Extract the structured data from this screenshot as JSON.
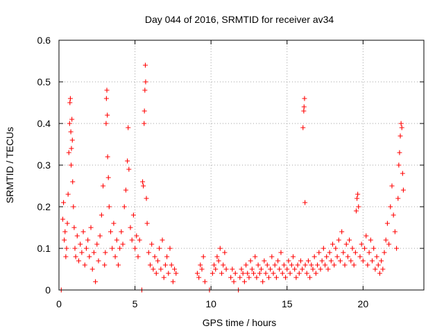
{
  "chart_data": {
    "type": "scatter",
    "title": "Day 044 of 2016, SRMTID for receiver av34",
    "xlabel": "GPS time / hours",
    "ylabel": "SRMTID / TECUs",
    "xlim": [
      0,
      24
    ],
    "ylim": [
      0,
      0.6
    ],
    "x_ticks": [
      0,
      5,
      10,
      15,
      20
    ],
    "x_tick_labels": [
      "0",
      "5",
      "10",
      "15",
      "20"
    ],
    "y_ticks": [
      0,
      0.1,
      0.2,
      0.3,
      0.4,
      0.5,
      0.6
    ],
    "y_tick_labels": [
      "0",
      "0.1",
      "0.2",
      "0.3",
      "0.4",
      "0.5",
      "0.6"
    ],
    "grid": true,
    "marker": "+",
    "color": "#ff0000",
    "series": [
      {
        "name": "SRMTID",
        "points": [
          [
            0.15,
            0.0
          ],
          [
            0.25,
            0.17
          ],
          [
            0.3,
            0.21
          ],
          [
            0.35,
            0.12
          ],
          [
            0.4,
            0.14
          ],
          [
            0.45,
            0.08
          ],
          [
            0.5,
            0.1
          ],
          [
            0.55,
            0.16
          ],
          [
            0.6,
            0.23
          ],
          [
            0.65,
            0.33
          ],
          [
            0.7,
            0.4
          ],
          [
            0.72,
            0.45
          ],
          [
            0.75,
            0.46
          ],
          [
            0.78,
            0.38
          ],
          [
            0.8,
            0.3
          ],
          [
            0.82,
            0.34
          ],
          [
            0.85,
            0.41
          ],
          [
            0.88,
            0.36
          ],
          [
            0.9,
            0.26
          ],
          [
            0.95,
            0.2
          ],
          [
            1.0,
            0.15
          ],
          [
            1.05,
            0.1
          ],
          [
            1.1,
            0.08
          ],
          [
            1.2,
            0.13
          ],
          [
            1.3,
            0.07
          ],
          [
            1.4,
            0.11
          ],
          [
            1.5,
            0.09
          ],
          [
            1.6,
            0.14
          ],
          [
            1.7,
            0.06
          ],
          [
            1.8,
            0.1
          ],
          [
            1.9,
            0.12
          ],
          [
            2.0,
            0.08
          ],
          [
            2.1,
            0.15
          ],
          [
            2.2,
            0.05
          ],
          [
            2.3,
            0.09
          ],
          [
            2.4,
            0.02
          ],
          [
            2.5,
            0.11
          ],
          [
            2.6,
            0.07
          ],
          [
            2.7,
            0.13
          ],
          [
            2.8,
            0.18
          ],
          [
            2.9,
            0.25
          ],
          [
            3.0,
            0.06
          ],
          [
            3.05,
            0.09
          ],
          [
            3.1,
            0.4
          ],
          [
            3.12,
            0.46
          ],
          [
            3.15,
            0.48
          ],
          [
            3.18,
            0.42
          ],
          [
            3.2,
            0.32
          ],
          [
            3.25,
            0.27
          ],
          [
            3.3,
            0.2
          ],
          [
            3.4,
            0.14
          ],
          [
            3.5,
            0.1
          ],
          [
            3.6,
            0.16
          ],
          [
            3.7,
            0.08
          ],
          [
            3.8,
            0.12
          ],
          [
            3.9,
            0.06
          ],
          [
            4.0,
            0.1
          ],
          [
            4.1,
            0.14
          ],
          [
            4.2,
            0.11
          ],
          [
            4.3,
            0.2
          ],
          [
            4.4,
            0.24
          ],
          [
            4.5,
            0.31
          ],
          [
            4.55,
            0.39
          ],
          [
            4.6,
            0.29
          ],
          [
            4.7,
            0.15
          ],
          [
            4.8,
            0.12
          ],
          [
            4.9,
            0.18
          ],
          [
            5.0,
            0.1
          ],
          [
            5.1,
            0.13
          ],
          [
            5.2,
            0.08
          ],
          [
            5.3,
            0.12
          ],
          [
            5.45,
            0.0
          ],
          [
            5.5,
            0.26
          ],
          [
            5.55,
            0.25
          ],
          [
            5.6,
            0.4
          ],
          [
            5.62,
            0.43
          ],
          [
            5.65,
            0.48
          ],
          [
            5.68,
            0.54
          ],
          [
            5.7,
            0.5
          ],
          [
            5.75,
            0.22
          ],
          [
            5.8,
            0.16
          ],
          [
            5.9,
            0.09
          ],
          [
            6.0,
            0.06
          ],
          [
            6.1,
            0.11
          ],
          [
            6.2,
            0.05
          ],
          [
            6.3,
            0.08
          ],
          [
            6.4,
            0.04
          ],
          [
            6.5,
            0.07
          ],
          [
            6.6,
            0.1
          ],
          [
            6.7,
            0.05
          ],
          [
            6.8,
            0.12
          ],
          [
            6.9,
            0.03
          ],
          [
            7.0,
            0.06
          ],
          [
            7.1,
            0.08
          ],
          [
            7.2,
            0.04
          ],
          [
            7.3,
            0.1
          ],
          [
            7.4,
            0.06
          ],
          [
            7.5,
            0.02
          ],
          [
            7.6,
            0.05
          ],
          [
            7.7,
            0.04
          ],
          [
            9.1,
            0.04
          ],
          [
            9.2,
            0.03
          ],
          [
            9.3,
            0.06
          ],
          [
            9.4,
            0.05
          ],
          [
            9.5,
            0.08
          ],
          [
            9.6,
            0.02
          ],
          [
            9.9,
            0.0
          ],
          [
            10.1,
            0.04
          ],
          [
            10.2,
            0.06
          ],
          [
            10.3,
            0.05
          ],
          [
            10.4,
            0.08
          ],
          [
            10.5,
            0.07
          ],
          [
            10.6,
            0.1
          ],
          [
            10.7,
            0.04
          ],
          [
            10.8,
            0.06
          ],
          [
            10.9,
            0.09
          ],
          [
            11.0,
            0.05
          ],
          [
            11.3,
            0.03
          ],
          [
            11.4,
            0.05
          ],
          [
            11.5,
            0.02
          ],
          [
            11.6,
            0.04
          ],
          [
            11.8,
            0.0
          ],
          [
            11.9,
            0.03
          ],
          [
            12.0,
            0.05
          ],
          [
            12.1,
            0.04
          ],
          [
            12.2,
            0.02
          ],
          [
            12.3,
            0.06
          ],
          [
            12.4,
            0.04
          ],
          [
            12.5,
            0.03
          ],
          [
            12.6,
            0.07
          ],
          [
            12.7,
            0.05
          ],
          [
            12.8,
            0.04
          ],
          [
            12.9,
            0.08
          ],
          [
            13.0,
            0.03
          ],
          [
            13.1,
            0.06
          ],
          [
            13.2,
            0.04
          ],
          [
            13.3,
            0.05
          ],
          [
            13.4,
            0.02
          ],
          [
            13.5,
            0.07
          ],
          [
            13.6,
            0.04
          ],
          [
            13.7,
            0.06
          ],
          [
            13.8,
            0.03
          ],
          [
            13.9,
            0.05
          ],
          [
            14.0,
            0.08
          ],
          [
            14.1,
            0.04
          ],
          [
            14.2,
            0.06
          ],
          [
            14.3,
            0.03
          ],
          [
            14.4,
            0.07
          ],
          [
            14.5,
            0.05
          ],
          [
            14.6,
            0.09
          ],
          [
            14.7,
            0.04
          ],
          [
            14.8,
            0.06
          ],
          [
            14.9,
            0.03
          ],
          [
            15.0,
            0.05
          ],
          [
            15.1,
            0.07
          ],
          [
            15.2,
            0.04
          ],
          [
            15.3,
            0.06
          ],
          [
            15.4,
            0.08
          ],
          [
            15.5,
            0.05
          ],
          [
            15.6,
            0.03
          ],
          [
            15.7,
            0.06
          ],
          [
            15.8,
            0.04
          ],
          [
            15.9,
            0.07
          ],
          [
            16.0,
            0.05
          ],
          [
            16.05,
            0.39
          ],
          [
            16.1,
            0.43
          ],
          [
            16.12,
            0.44
          ],
          [
            16.15,
            0.46
          ],
          [
            16.18,
            0.21
          ],
          [
            16.2,
            0.06
          ],
          [
            16.3,
            0.04
          ],
          [
            16.4,
            0.07
          ],
          [
            16.5,
            0.03
          ],
          [
            16.6,
            0.06
          ],
          [
            16.7,
            0.05
          ],
          [
            16.8,
            0.08
          ],
          [
            16.9,
            0.04
          ],
          [
            17.0,
            0.06
          ],
          [
            17.1,
            0.09
          ],
          [
            17.2,
            0.05
          ],
          [
            17.3,
            0.07
          ],
          [
            17.4,
            0.1
          ],
          [
            17.5,
            0.06
          ],
          [
            17.6,
            0.08
          ],
          [
            17.7,
            0.05
          ],
          [
            17.8,
            0.09
          ],
          [
            17.9,
            0.07
          ],
          [
            18.0,
            0.11
          ],
          [
            18.1,
            0.06
          ],
          [
            18.2,
            0.1
          ],
          [
            18.3,
            0.08
          ],
          [
            18.4,
            0.12
          ],
          [
            18.5,
            0.07
          ],
          [
            18.6,
            0.14
          ],
          [
            18.7,
            0.09
          ],
          [
            18.8,
            0.06
          ],
          [
            18.9,
            0.11
          ],
          [
            19.0,
            0.08
          ],
          [
            19.1,
            0.12
          ],
          [
            19.2,
            0.07
          ],
          [
            19.3,
            0.1
          ],
          [
            19.4,
            0.06
          ],
          [
            19.5,
            0.09
          ],
          [
            19.55,
            0.19
          ],
          [
            19.6,
            0.22
          ],
          [
            19.65,
            0.23
          ],
          [
            19.7,
            0.2
          ],
          [
            19.8,
            0.08
          ],
          [
            19.9,
            0.11
          ],
          [
            20.0,
            0.07
          ],
          [
            20.1,
            0.1
          ],
          [
            20.2,
            0.13
          ],
          [
            20.3,
            0.06
          ],
          [
            20.4,
            0.09
          ],
          [
            20.5,
            0.12
          ],
          [
            20.6,
            0.07
          ],
          [
            20.7,
            0.1
          ],
          [
            20.8,
            0.05
          ],
          [
            20.9,
            0.08
          ],
          [
            21.0,
            0.06
          ],
          [
            21.1,
            0.04
          ],
          [
            21.2,
            0.07
          ],
          [
            21.3,
            0.05
          ],
          [
            21.4,
            0.09
          ],
          [
            21.5,
            0.12
          ],
          [
            21.6,
            0.16
          ],
          [
            21.7,
            0.11
          ],
          [
            21.8,
            0.2
          ],
          [
            21.9,
            0.25
          ],
          [
            22.0,
            0.18
          ],
          [
            22.1,
            0.14
          ],
          [
            22.2,
            0.1
          ],
          [
            22.3,
            0.22
          ],
          [
            22.35,
            0.3
          ],
          [
            22.4,
            0.33
          ],
          [
            22.45,
            0.37
          ],
          [
            22.5,
            0.4
          ],
          [
            22.55,
            0.39
          ],
          [
            22.6,
            0.28
          ],
          [
            22.65,
            0.24
          ]
        ]
      }
    ]
  }
}
